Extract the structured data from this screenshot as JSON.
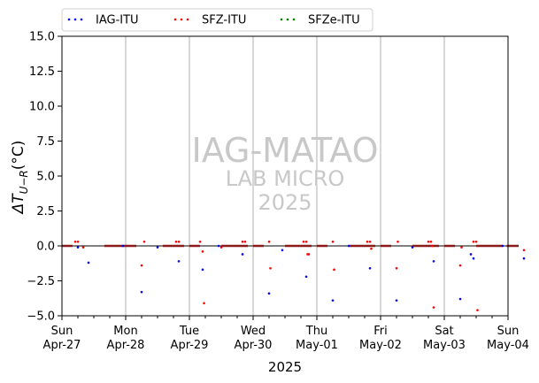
{
  "chart_data": {
    "type": "scatter",
    "xlabel": "2025",
    "ylabel_symbol": "ΔT",
    "ylabel_sub": "U−R",
    "ylabel_unit": "(°C)",
    "ylim": [
      -5.0,
      15.0
    ],
    "yticks": [
      -5.0,
      -2.5,
      0.0,
      2.5,
      5.0,
      7.5,
      10.0,
      12.5,
      15.0
    ],
    "ytick_labels": [
      "−5.0",
      "−2.5",
      "0.0",
      "2.5",
      "5.0",
      "7.5",
      "10.0",
      "12.5",
      "15.0"
    ],
    "xlim": [
      "2025-04-27",
      "2025-05-04"
    ],
    "xticks": [
      {
        "day": "Sun",
        "date": "Apr-27"
      },
      {
        "day": "Mon",
        "date": "Apr-28"
      },
      {
        "day": "Tue",
        "date": "Apr-29"
      },
      {
        "day": "Wed",
        "date": "Apr-30"
      },
      {
        "day": "Thu",
        "date": "May-01"
      },
      {
        "day": "Fri",
        "date": "May-02"
      },
      {
        "day": "Sat",
        "date": "May-03"
      },
      {
        "day": "Sun",
        "date": "May-04"
      }
    ],
    "grid": "vertical",
    "legend_position": "top",
    "zero_line": 0,
    "series": [
      {
        "name": "IAG-ITU",
        "color": "#0000ff",
        "points": [
          [
            "2025-04-27 06:00",
            -0.1
          ],
          [
            "2025-04-27 10:00",
            -1.2
          ],
          [
            "2025-04-27 23:00",
            0.0
          ],
          [
            "2025-04-28 06:00",
            -3.3
          ],
          [
            "2025-04-28 12:00",
            -0.1
          ],
          [
            "2025-04-28 20:00",
            -1.1
          ],
          [
            "2025-04-29 05:00",
            -1.7
          ],
          [
            "2025-04-29 11:00",
            0.0
          ],
          [
            "2025-04-29 20:00",
            -0.6
          ],
          [
            "2025-04-30 06:00",
            -3.4
          ],
          [
            "2025-04-30 11:00",
            -0.3
          ],
          [
            "2025-04-30 20:00",
            -2.2
          ],
          [
            "2025-05-01 06:00",
            -3.9
          ],
          [
            "2025-05-01 12:00",
            0.0
          ],
          [
            "2025-05-01 20:00",
            -1.6
          ],
          [
            "2025-05-02 06:00",
            -3.9
          ],
          [
            "2025-05-02 12:00",
            -0.1
          ],
          [
            "2025-05-02 20:00",
            -1.1
          ],
          [
            "2025-05-03 06:00",
            -3.8
          ],
          [
            "2025-05-03 10:00",
            -0.6
          ],
          [
            "2025-05-03 11:00",
            -0.9
          ],
          [
            "2025-05-03 22:00",
            0.0
          ],
          [
            "2025-05-04 06:00",
            -0.9
          ]
        ]
      },
      {
        "name": "SFZ-ITU",
        "color": "#ff0000",
        "points": [
          [
            "2025-04-27 05:00",
            0.3
          ],
          [
            "2025-04-27 06:00",
            0.3
          ],
          [
            "2025-04-27 08:00",
            -0.1
          ],
          [
            "2025-04-28 06:00",
            -1.4
          ],
          [
            "2025-04-28 07:00",
            0.3
          ],
          [
            "2025-04-28 19:00",
            0.3
          ],
          [
            "2025-04-28 20:00",
            0.3
          ],
          [
            "2025-04-29 04:00",
            0.3
          ],
          [
            "2025-04-29 05:00",
            -0.4
          ],
          [
            "2025-04-29 05:30",
            -4.1
          ],
          [
            "2025-04-29 12:00",
            -0.1
          ],
          [
            "2025-04-29 20:00",
            0.3
          ],
          [
            "2025-04-29 21:00",
            0.3
          ],
          [
            "2025-04-30 06:00",
            0.3
          ],
          [
            "2025-04-30 06:30",
            -1.6
          ],
          [
            "2025-04-30 19:00",
            0.3
          ],
          [
            "2025-04-30 20:00",
            0.3
          ],
          [
            "2025-04-30 20:30",
            -0.6
          ],
          [
            "2025-04-30 21:00",
            -0.6
          ],
          [
            "2025-05-01 06:00",
            0.3
          ],
          [
            "2025-05-01 06:30",
            -1.7
          ],
          [
            "2025-05-01 19:00",
            0.3
          ],
          [
            "2025-05-01 20:00",
            0.3
          ],
          [
            "2025-05-01 20:30",
            -0.2
          ],
          [
            "2025-05-02 06:00",
            -1.6
          ],
          [
            "2025-05-02 06:30",
            0.3
          ],
          [
            "2025-05-02 18:00",
            0.3
          ],
          [
            "2025-05-02 19:00",
            0.3
          ],
          [
            "2025-05-02 19:30",
            0.0
          ],
          [
            "2025-05-02 20:00",
            -4.4
          ],
          [
            "2025-05-03 06:00",
            -1.4
          ],
          [
            "2025-05-03 06:30",
            -0.1
          ],
          [
            "2025-05-03 11:00",
            0.3
          ],
          [
            "2025-05-03 12:00",
            0.3
          ],
          [
            "2025-05-03 12:30",
            -4.6
          ],
          [
            "2025-05-04 06:00",
            -0.3
          ]
        ]
      },
      {
        "name": "SFZe-ITU",
        "color": "#008000",
        "points": []
      }
    ],
    "dense_segments": {
      "color": "#8b1a1a",
      "value": 0.0,
      "ranges": [
        [
          "2025-04-27 00:00",
          "2025-04-27 04:00"
        ],
        [
          "2025-04-27 16:00",
          "2025-04-28 04:00"
        ],
        [
          "2025-04-28 14:00",
          "2025-04-28 22:00"
        ],
        [
          "2025-04-29 00:00",
          "2025-04-29 04:00"
        ],
        [
          "2025-04-29 12:00",
          "2025-04-29 22:00"
        ],
        [
          "2025-04-30 00:00",
          "2025-04-30 04:00"
        ],
        [
          "2025-04-30 12:00",
          "2025-04-30 22:00"
        ],
        [
          "2025-05-01 00:00",
          "2025-05-01 04:00"
        ],
        [
          "2025-05-01 12:00",
          "2025-05-01 22:00"
        ],
        [
          "2025-05-02 00:00",
          "2025-05-02 04:00"
        ],
        [
          "2025-05-02 12:00",
          "2025-05-02 22:00"
        ],
        [
          "2025-05-03 00:00",
          "2025-05-03 04:00"
        ],
        [
          "2025-05-03 12:00",
          "2025-05-03 22:00"
        ],
        [
          "2025-05-03 23:30",
          "2025-05-04 00:00"
        ],
        [
          "2025-05-04 00:00",
          "2025-05-04 04:00"
        ]
      ]
    }
  },
  "watermark": {
    "line1": "IAG-MATAO",
    "line2": "LAB MICRO",
    "line3": "2025"
  }
}
